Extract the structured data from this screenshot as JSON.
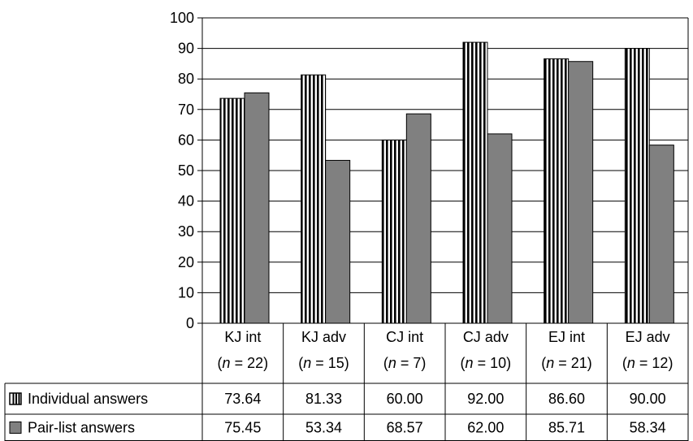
{
  "chart_data": {
    "type": "bar",
    "categories": [
      {
        "name": "KJ int",
        "n": "(n = 22)",
        "n_prefix": "(",
        "n_var": "n",
        "n_rest": " = 22)"
      },
      {
        "name": "KJ adv",
        "n": "(n = 15)",
        "n_prefix": "(",
        "n_var": "n",
        "n_rest": " = 15)"
      },
      {
        "name": "CJ int",
        "n": "(n = 7)",
        "n_prefix": "(",
        "n_var": "n",
        "n_rest": " = 7)"
      },
      {
        "name": "CJ adv",
        "n": "(n = 10)",
        "n_prefix": "(",
        "n_var": "n",
        "n_rest": " = 10)"
      },
      {
        "name": "EJ int",
        "n": "(n = 21)",
        "n_prefix": "(",
        "n_var": "n",
        "n_rest": " = 21)"
      },
      {
        "name": "EJ adv",
        "n": "(n = 12)",
        "n_prefix": "(",
        "n_var": "n",
        "n_rest": " = 12)"
      }
    ],
    "series": [
      {
        "name": "Individual answers",
        "values": [
          73.64,
          81.33,
          60.0,
          92.0,
          86.6,
          90.0
        ],
        "labels": [
          "73.64",
          "81.33",
          "60.00",
          "92.00",
          "86.60",
          "90.00"
        ],
        "pattern": "vertical-stripes",
        "color": "#000000"
      },
      {
        "name": "Pair-list answers",
        "values": [
          75.45,
          53.34,
          68.57,
          62.0,
          85.71,
          58.34
        ],
        "labels": [
          "75.45",
          "53.34",
          "68.57",
          "62.00",
          "85.71",
          "58.34"
        ],
        "pattern": "solid",
        "color": "#808080"
      }
    ],
    "y_ticks": [
      0,
      10,
      20,
      30,
      40,
      50,
      60,
      70,
      80,
      90,
      100
    ],
    "ylim": [
      0,
      100
    ],
    "grid": true,
    "legend": "data-table-below"
  }
}
